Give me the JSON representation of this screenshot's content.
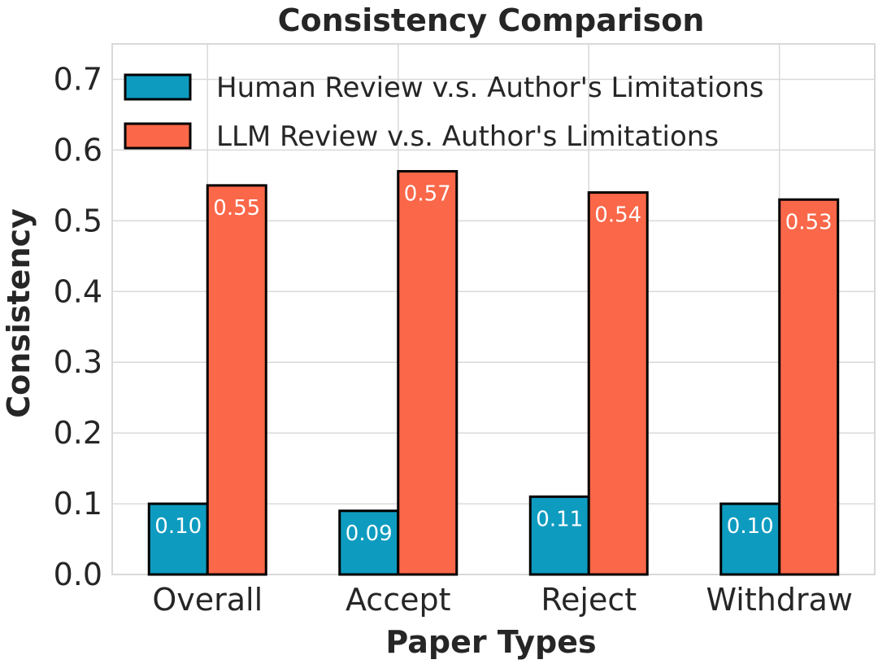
{
  "chart_data": {
    "type": "bar",
    "title": "Consistency Comparison",
    "xlabel": "Paper Types",
    "ylabel": "Consistency",
    "categories": [
      "Overall",
      "Accept",
      "Reject",
      "Withdraw"
    ],
    "series": [
      {
        "name": "Human Review v.s. Author's Limitations",
        "values": [
          0.1,
          0.09,
          0.11,
          0.1
        ],
        "labels": [
          "0.10",
          "0.09",
          "0.11",
          "0.10"
        ],
        "color": "#0e9bc0"
      },
      {
        "name": "LLM Review v.s. Author's Limitations",
        "values": [
          0.55,
          0.57,
          0.54,
          0.53
        ],
        "labels": [
          "0.55",
          "0.57",
          "0.54",
          "0.53"
        ],
        "color": "#fa6749"
      }
    ],
    "ylim": [
      0,
      0.75
    ],
    "yticks": [
      0.0,
      0.1,
      0.2,
      0.3,
      0.4,
      0.5,
      0.6,
      0.7
    ],
    "ytick_labels": [
      "0.0",
      "0.1",
      "0.2",
      "0.3",
      "0.4",
      "0.5",
      "0.6",
      "0.7"
    ],
    "grid": true,
    "legend_position": "top-left"
  }
}
